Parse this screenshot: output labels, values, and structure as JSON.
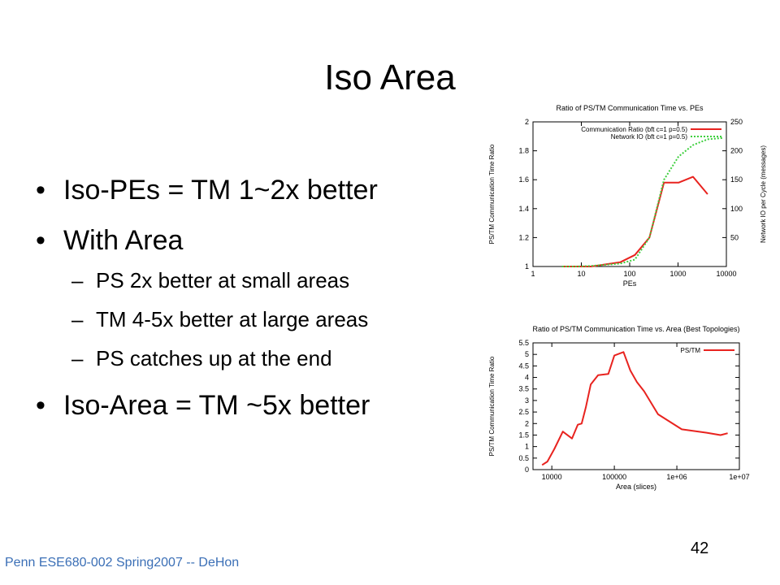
{
  "slide": {
    "title": "Iso Area",
    "bullets": [
      {
        "dot": "•",
        "text": "Iso-PEs = TM 1~2x better"
      },
      {
        "dot": "•",
        "text": "With Area"
      }
    ],
    "sub_bullets": [
      {
        "dash": "–",
        "text": "PS 2x better at small areas"
      },
      {
        "dash": "–",
        "text": "TM 4-5x better at large areas"
      },
      {
        "dash": "–",
        "text": "PS catches up at the end"
      }
    ],
    "final_bullet": {
      "dot": "•",
      "text": "Iso-Area = TM ~5x better"
    },
    "footer": "Penn ESE680-002 Spring2007 -- DeHon",
    "page_number": "42"
  },
  "chart_data": [
    {
      "type": "line",
      "title": "Ratio of PS/TM Communication Time vs. PEs",
      "xlabel": "PEs",
      "ylabel": "PS/TM Communication Time Ratio",
      "y2label": "Network IO per Cycle (messages)",
      "x_scale": "log",
      "xlim": [
        1,
        10000
      ],
      "ylim": [
        1,
        2
      ],
      "y2lim": [
        0,
        250
      ],
      "x_ticks": [
        "1",
        "10",
        "100",
        "1000",
        "10000"
      ],
      "y_ticks": [
        "1",
        "1.2",
        "1.4",
        "1.6",
        "1.8",
        "2"
      ],
      "y2_ticks": [
        "50",
        "100",
        "150",
        "200",
        "250"
      ],
      "legend_position": "top-right",
      "grid": false,
      "series": [
        {
          "name": "Communication Ratio (bft c=1 p=0.5)",
          "color": "#e8231f",
          "style": "solid",
          "axis": "left",
          "x": [
            4,
            8,
            16,
            64,
            128,
            256,
            512,
            1024,
            2048,
            4096
          ],
          "y": [
            1.0,
            1.0,
            1.0,
            1.03,
            1.08,
            1.2,
            1.58,
            1.58,
            1.62,
            1.5
          ]
        },
        {
          "name": "Network IO (bft c=1 p=0.5)",
          "color": "#3ecf3e",
          "style": "dotted",
          "axis": "right",
          "x": [
            4,
            8,
            16,
            64,
            128,
            256,
            512,
            1024,
            2048,
            4096,
            8192
          ],
          "y": [
            0,
            0,
            1,
            5,
            12,
            50,
            150,
            190,
            210,
            220,
            222
          ]
        }
      ]
    },
    {
      "type": "line",
      "title": "Ratio of PS/TM Communication Time vs. Area (Best Topologies)",
      "xlabel": "Area (slices)",
      "ylabel": "PS/TM Communication Time Ratio",
      "x_scale": "log",
      "xlim": [
        5000,
        10000000
      ],
      "ylim": [
        0,
        5.5
      ],
      "x_ticks": [
        "10000",
        "100000",
        "1e+06",
        "1e+07"
      ],
      "y_ticks": [
        "0",
        "0.5",
        "1",
        "1.5",
        "2",
        "2.5",
        "3",
        "3.5",
        "4",
        "4.5",
        "5",
        "5.5"
      ],
      "legend_position": "top-right",
      "grid": false,
      "series": [
        {
          "name": "PS/TM",
          "color": "#e8231f",
          "style": "solid",
          "axis": "left",
          "x": [
            7000,
            8500,
            11000,
            15000,
            21000,
            26000,
            30000,
            35000,
            42000,
            55000,
            80000,
            100000,
            140000,
            180000,
            230000,
            300000,
            500000,
            1200000,
            3000000,
            5000000,
            6500000
          ],
          "y": [
            0.2,
            0.35,
            0.9,
            1.65,
            1.35,
            1.95,
            2.0,
            2.7,
            3.7,
            4.1,
            4.15,
            4.95,
            5.1,
            4.3,
            3.8,
            3.4,
            2.4,
            1.75,
            1.6,
            1.5,
            1.58
          ]
        }
      ]
    }
  ]
}
